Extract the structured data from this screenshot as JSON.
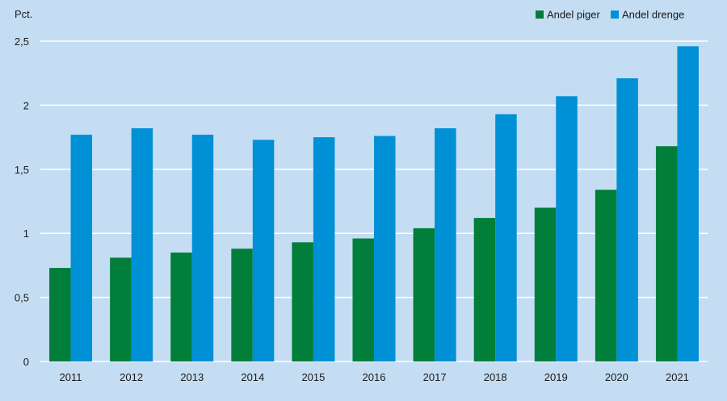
{
  "chart_data": {
    "type": "bar",
    "title": "",
    "ylabel": "Pct.",
    "xlabel": "",
    "categories": [
      "2011",
      "2012",
      "2013",
      "2014",
      "2015",
      "2016",
      "2017",
      "2018",
      "2019",
      "2020",
      "2021"
    ],
    "series": [
      {
        "name": "Andel piger",
        "color": "#007e3a",
        "values": [
          0.73,
          0.81,
          0.85,
          0.88,
          0.93,
          0.96,
          1.04,
          1.12,
          1.2,
          1.34,
          1.68
        ]
      },
      {
        "name": "Andel drenge",
        "color": "#0090d6",
        "values": [
          1.77,
          1.82,
          1.77,
          1.73,
          1.75,
          1.76,
          1.82,
          1.93,
          2.07,
          2.21,
          2.46
        ]
      }
    ],
    "ylim": [
      0,
      2.5
    ],
    "yticks": [
      0,
      0.5,
      1,
      1.5,
      2,
      2.5
    ],
    "ytick_labels": [
      "0",
      "0,5",
      "1",
      "1,5",
      "2",
      "2,5"
    ],
    "grid": true,
    "legend_position": "top-right",
    "background_color": "#c5ddf2",
    "gridline_color": "#ffffff"
  }
}
